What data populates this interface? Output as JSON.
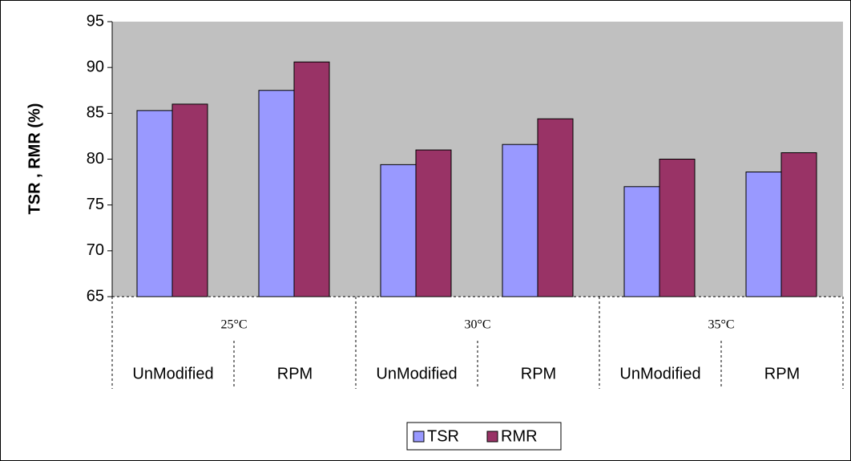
{
  "chart_data": {
    "type": "bar",
    "ylabel": "TSR , RMR (%)",
    "categories": [
      "UnModified",
      "RPM",
      "UnModified",
      "RPM",
      "UnModified",
      "RPM"
    ],
    "category_groups": [
      "25°C",
      "30°C",
      "35°C"
    ],
    "series": [
      {
        "name": "TSR",
        "color": "#9999ff",
        "values": [
          85.3,
          87.5,
          79.4,
          81.6,
          77.0,
          78.6
        ]
      },
      {
        "name": "RMR",
        "color": "#993366",
        "values": [
          86.0,
          90.6,
          81.0,
          84.4,
          80.0,
          80.7
        ]
      }
    ],
    "ylim": [
      65,
      95
    ],
    "yticks": [
      65,
      70,
      75,
      80,
      85,
      90,
      95
    ],
    "plot_background": "#c0c0c0",
    "legend": "bottom"
  }
}
